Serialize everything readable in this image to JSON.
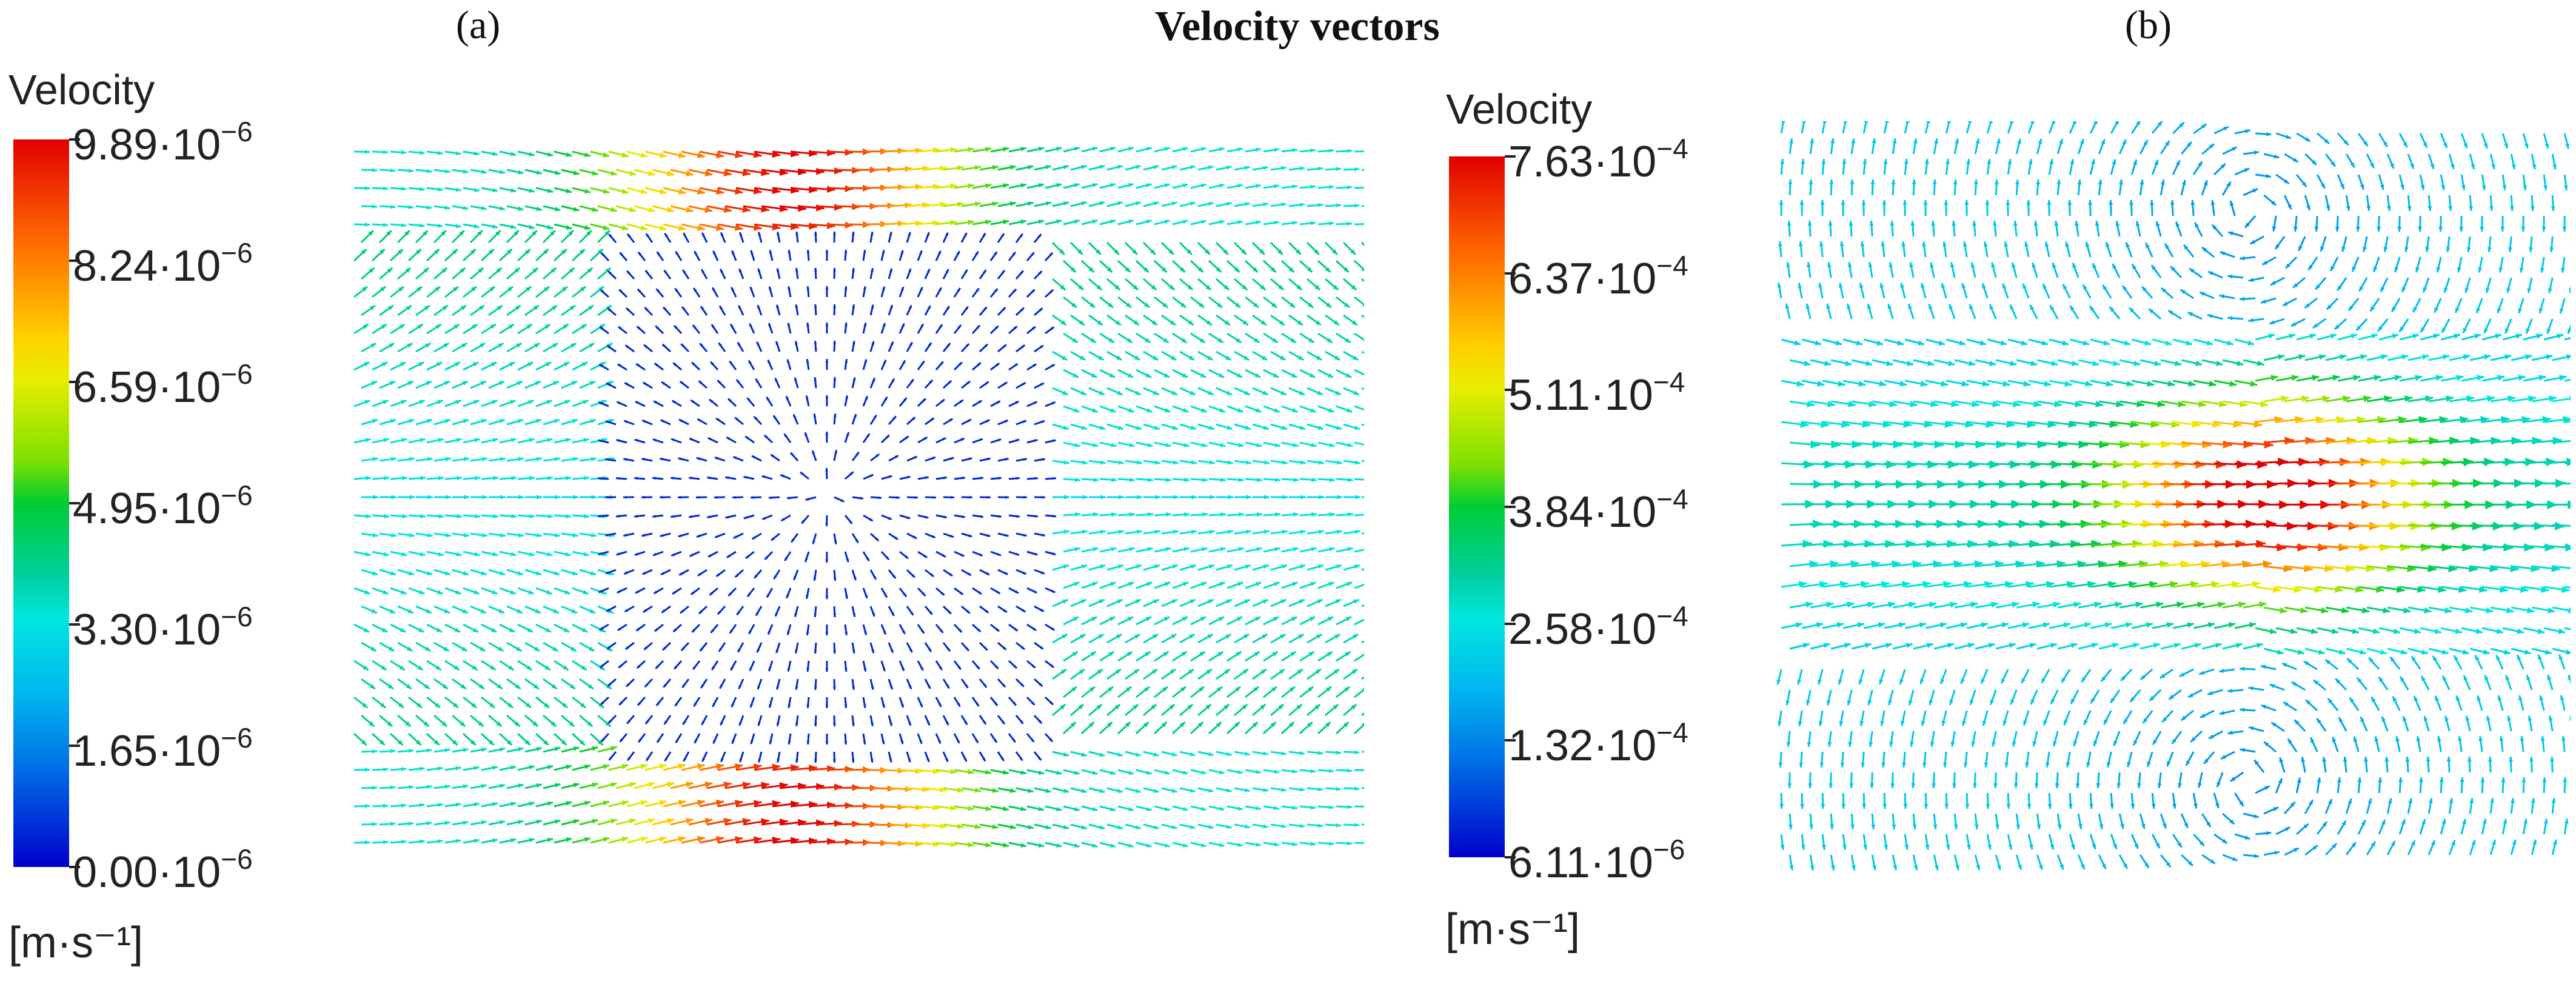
{
  "title": "Velocity vectors",
  "panels": [
    {
      "id": "a",
      "label": "(a)",
      "legend": {
        "title": "Velocity",
        "unit": "[m·s⁻¹]",
        "ticks": [
          {
            "mantissa": "9.89·10",
            "exponent": "−6"
          },
          {
            "mantissa": "8.24·10",
            "exponent": "−6"
          },
          {
            "mantissa": "6.59·10",
            "exponent": "−6"
          },
          {
            "mantissa": "4.95·10",
            "exponent": "−6"
          },
          {
            "mantissa": "3.30·10",
            "exponent": "−6"
          },
          {
            "mantissa": "1.65·10",
            "exponent": "−6"
          },
          {
            "mantissa": "0.00·10",
            "exponent": "−6"
          }
        ]
      },
      "field_description_icon": "vector-field-icon"
    },
    {
      "id": "b",
      "label": "(b)",
      "legend": {
        "title": "Velocity",
        "unit": "[m·s⁻¹]",
        "ticks": [
          {
            "mantissa": "7.63·10",
            "exponent": "−4"
          },
          {
            "mantissa": "6.37·10",
            "exponent": "−4"
          },
          {
            "mantissa": "5.11·10",
            "exponent": "−4"
          },
          {
            "mantissa": "3.84·10",
            "exponent": "−4"
          },
          {
            "mantissa": "2.58·10",
            "exponent": "−4"
          },
          {
            "mantissa": "1.32·10",
            "exponent": "−4"
          },
          {
            "mantissa": "6.11·10",
            "exponent": "−6"
          }
        ]
      },
      "field_description_icon": "vector-field-icon"
    }
  ],
  "colors": {
    "max": "#e00000",
    "mid_high": "#ffcf00",
    "mid": "#00cc33",
    "mid_low": "#00e6e0",
    "low": "#2a7fc0",
    "min": "#0000cc"
  }
}
